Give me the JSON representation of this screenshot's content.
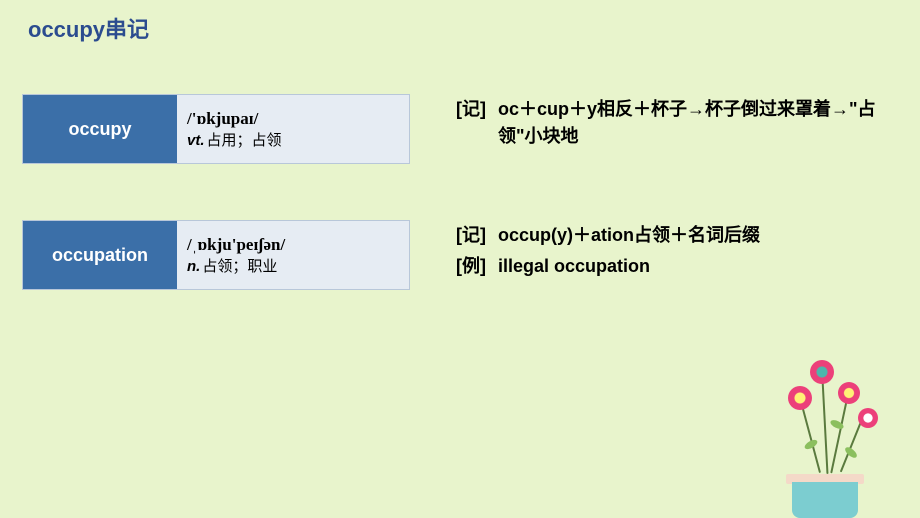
{
  "page": {
    "background_color": "#e8f4cc",
    "title_color": "#2b4c8f",
    "title": "occupy串记"
  },
  "entries": [
    {
      "word": "occupy",
      "pronunciation": "/'ɒkjupaɪ/",
      "pos": "vt.",
      "definition": "占用；占领",
      "label_bg": "#3b6fa8",
      "label_color": "#ffffff",
      "detail_bg": "#e6ecf3",
      "notes": [
        {
          "tag": "[记]",
          "text": "oc＋cup＋y相反＋杯子→杯子倒过来罩着→\"占领\"小块地"
        }
      ]
    },
    {
      "word": "occupation",
      "pronunciation": "/ˌɒkju'peɪʃən/",
      "pos": "n.",
      "definition": "占领；职业",
      "label_bg": "#3b6fa8",
      "label_color": "#ffffff",
      "detail_bg": "#e6ecf3",
      "notes": [
        {
          "tag": "[记]",
          "text": "occup(y)＋ation占领＋名词后缀"
        },
        {
          "tag": "[例]",
          "text": "illegal  occupation"
        }
      ]
    }
  ]
}
